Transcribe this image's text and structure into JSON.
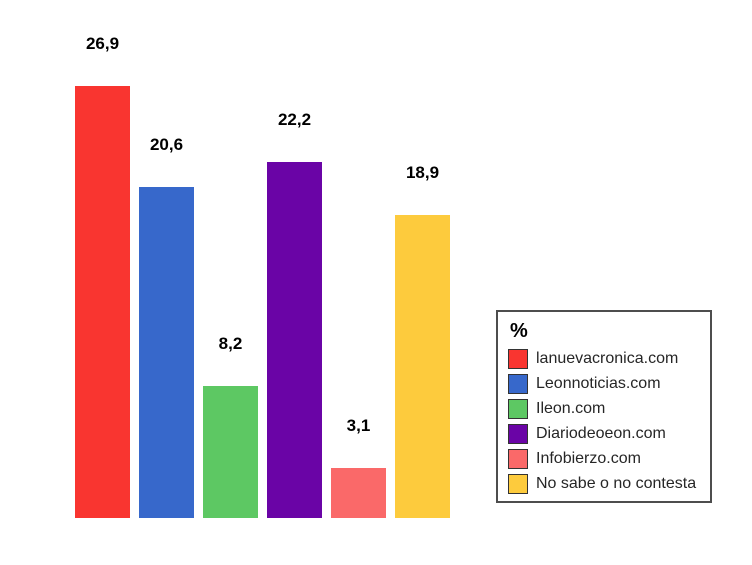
{
  "chart_data": {
    "type": "bar",
    "title": "",
    "xlabel": "",
    "ylabel": "",
    "legend_title": "%",
    "legend_position": "right",
    "grid": false,
    "background_color": "#ffffff",
    "ylim": [
      0,
      29
    ],
    "value_decimal_separator": ",",
    "categories": [
      "lanuevacronica.com",
      "Leonnoticias.com",
      "Ileon.com",
      "Diariodeoeon.com",
      "Infobierzo.com",
      "No sabe o no contesta"
    ],
    "values": [
      26.9,
      20.6,
      8.2,
      22.2,
      3.1,
      18.9
    ],
    "value_labels": [
      "26,9",
      "20,6",
      "8,2",
      "22,2",
      "3,1",
      "18,9"
    ],
    "colors": [
      "#f93530",
      "#3768cb",
      "#5dc863",
      "#6a04a6",
      "#fa6969",
      "#fdcb3d"
    ]
  }
}
